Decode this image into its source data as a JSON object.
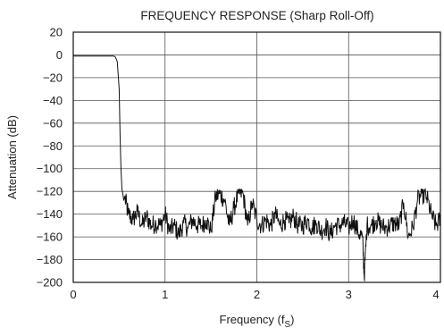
{
  "chart_data": {
    "type": "line",
    "title": "FREQUENCY RESPONSE (Sharp Roll-Off)",
    "xlabel_main": "Frequency (f",
    "xlabel_sub": "S",
    "xlabel_close": ")",
    "ylabel": "Attenuation (dB)",
    "xlim": [
      0,
      4
    ],
    "ylim": [
      -200,
      20
    ],
    "grid": true,
    "x_ticks": [
      "0",
      "1",
      "2",
      "3",
      "4"
    ],
    "x_tick_values": [
      0,
      1,
      2,
      3,
      4
    ],
    "y_ticks": [
      "20",
      "0",
      "−20",
      "−40",
      "−60",
      "−80",
      "−100",
      "−120",
      "−140",
      "−160",
      "−180",
      "−200"
    ],
    "y_tick_values": [
      20,
      0,
      -20,
      -40,
      -60,
      -80,
      -100,
      -120,
      -140,
      -160,
      -180,
      -200
    ],
    "series": [
      {
        "color": "#111111",
        "x": [
          0,
          0.1,
          0.2,
          0.3,
          0.4,
          0.44,
          0.46,
          0.48,
          0.5,
          0.51,
          0.52,
          0.53,
          0.54,
          0.55,
          0.56,
          0.6,
          0.65,
          0.7,
          0.75,
          0.8,
          0.85,
          0.9,
          0.95,
          1.0,
          1.05,
          1.1,
          1.15,
          1.2,
          1.25,
          1.3,
          1.35,
          1.4,
          1.45,
          1.5,
          1.55,
          1.6,
          1.65,
          1.7,
          1.75,
          1.8,
          1.85,
          1.9,
          1.95,
          2.0,
          2.05,
          2.1,
          2.15,
          2.2,
          2.25,
          2.3,
          2.35,
          2.4,
          2.45,
          2.5,
          2.55,
          2.6,
          2.65,
          2.7,
          2.75,
          2.8,
          2.85,
          2.9,
          2.95,
          3.0,
          3.05,
          3.1,
          3.15,
          3.17,
          3.2,
          3.25,
          3.3,
          3.35,
          3.4,
          3.45,
          3.5,
          3.55,
          3.6,
          3.65,
          3.7,
          3.75,
          3.8,
          3.85,
          3.9,
          3.95,
          4.0
        ],
        "y": [
          -1,
          -1,
          -1,
          -1,
          -1,
          -1,
          -2,
          -6,
          -30,
          -70,
          -100,
          -118,
          -122,
          -128,
          -125,
          -140,
          -145,
          -138,
          -150,
          -142,
          -150,
          -148,
          -150,
          -140,
          -155,
          -150,
          -158,
          -148,
          -152,
          -145,
          -150,
          -150,
          -145,
          -155,
          -125,
          -122,
          -128,
          -150,
          -135,
          -122,
          -122,
          -150,
          -130,
          -145,
          -150,
          -145,
          -150,
          -140,
          -150,
          -145,
          -148,
          -142,
          -150,
          -150,
          -145,
          -152,
          -148,
          -155,
          -150,
          -158,
          -150,
          -150,
          -148,
          -152,
          -145,
          -155,
          -160,
          -195,
          -150,
          -150,
          -145,
          -150,
          -152,
          -150,
          -148,
          -150,
          -130,
          -160,
          -152,
          -128,
          -122,
          -125,
          -140,
          -150,
          -145
        ]
      }
    ]
  }
}
